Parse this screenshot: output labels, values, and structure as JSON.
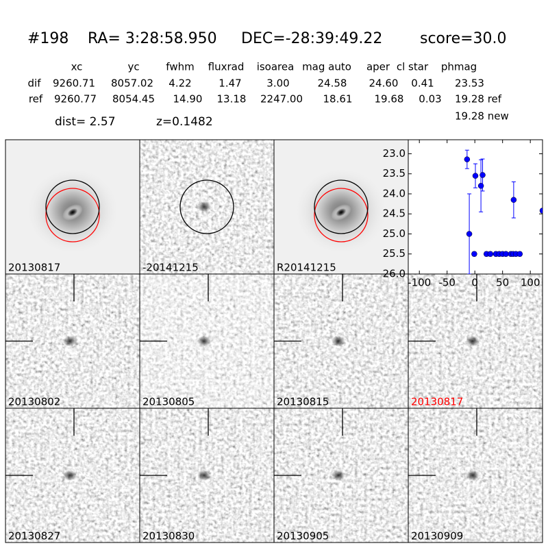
{
  "header": {
    "id": "#198",
    "ra": "RA= 3:28:58.950",
    "dec": "DEC=-28:39:49.22",
    "score": "score=30.0"
  },
  "table": {
    "columns": [
      "xc",
      "yc",
      "fwhm",
      "fluxrad",
      "isoarea",
      "mag auto",
      "aper",
      "cl star",
      "phmag"
    ],
    "rows": [
      [
        "dif",
        "9260.71",
        "8057.02",
        "4.22",
        "1.47",
        "3.00",
        "24.58",
        "24.60",
        "0.41",
        "23.53"
      ],
      [
        "ref",
        "9260.77",
        "8054.45",
        "14.90",
        "13.18",
        "2247.00",
        "18.61",
        "19.68",
        "0.03",
        "19.28 ref"
      ]
    ],
    "extra": "19.28 new",
    "dist": "dist=  2.57",
    "z": "z=0.1482"
  },
  "panels": [
    {
      "label": "20130817"
    },
    {
      "label": "-20141215"
    },
    {
      "label": "R20141215"
    },
    {
      "label": "20130802"
    },
    {
      "label": "20130805"
    },
    {
      "label": "20130815"
    },
    {
      "label": "20130817",
      "label_color": "#ff0000"
    },
    {
      "label": "20130827"
    },
    {
      "label": "20130830"
    },
    {
      "label": "20130905"
    },
    {
      "label": "20130909"
    }
  ],
  "chart_data": {
    "type": "scatter",
    "color": "#0000ff",
    "x": [
      -14,
      -10,
      -1,
      1,
      11,
      14,
      21,
      28,
      38,
      44,
      50,
      56,
      65,
      69,
      74,
      81,
      70,
      122
    ],
    "values": [
      23.14,
      25.0,
      25.5,
      23.55,
      23.8,
      23.53,
      25.5,
      25.5,
      25.5,
      25.5,
      25.5,
      25.5,
      25.5,
      25.5,
      25.5,
      25.5,
      24.15,
      24.42
    ],
    "errors": [
      0.23,
      1.0,
      0.05,
      0.3,
      0.65,
      0.4,
      0.05,
      0.05,
      0.05,
      0.05,
      0.05,
      0.05,
      0.05,
      0.05,
      0.05,
      0.05,
      0.45,
      0.05
    ],
    "xlim": [
      -120,
      122
    ],
    "ylim": [
      26.0,
      22.65
    ],
    "xticks": [
      -100,
      -50,
      0,
      50,
      100
    ],
    "yticks": [
      {
        "value": 23.0,
        "label": "23.0"
      },
      {
        "value": 23.5,
        "label": "23.5"
      },
      {
        "value": 24.0,
        "label": "24.0"
      },
      {
        "value": 24.5,
        "label": "24.5"
      },
      {
        "value": 25.0,
        "label": "25.0"
      },
      {
        "value": 25.5,
        "label": "25.5"
      },
      {
        "value": 26.0,
        "label": "26.0"
      }
    ]
  }
}
